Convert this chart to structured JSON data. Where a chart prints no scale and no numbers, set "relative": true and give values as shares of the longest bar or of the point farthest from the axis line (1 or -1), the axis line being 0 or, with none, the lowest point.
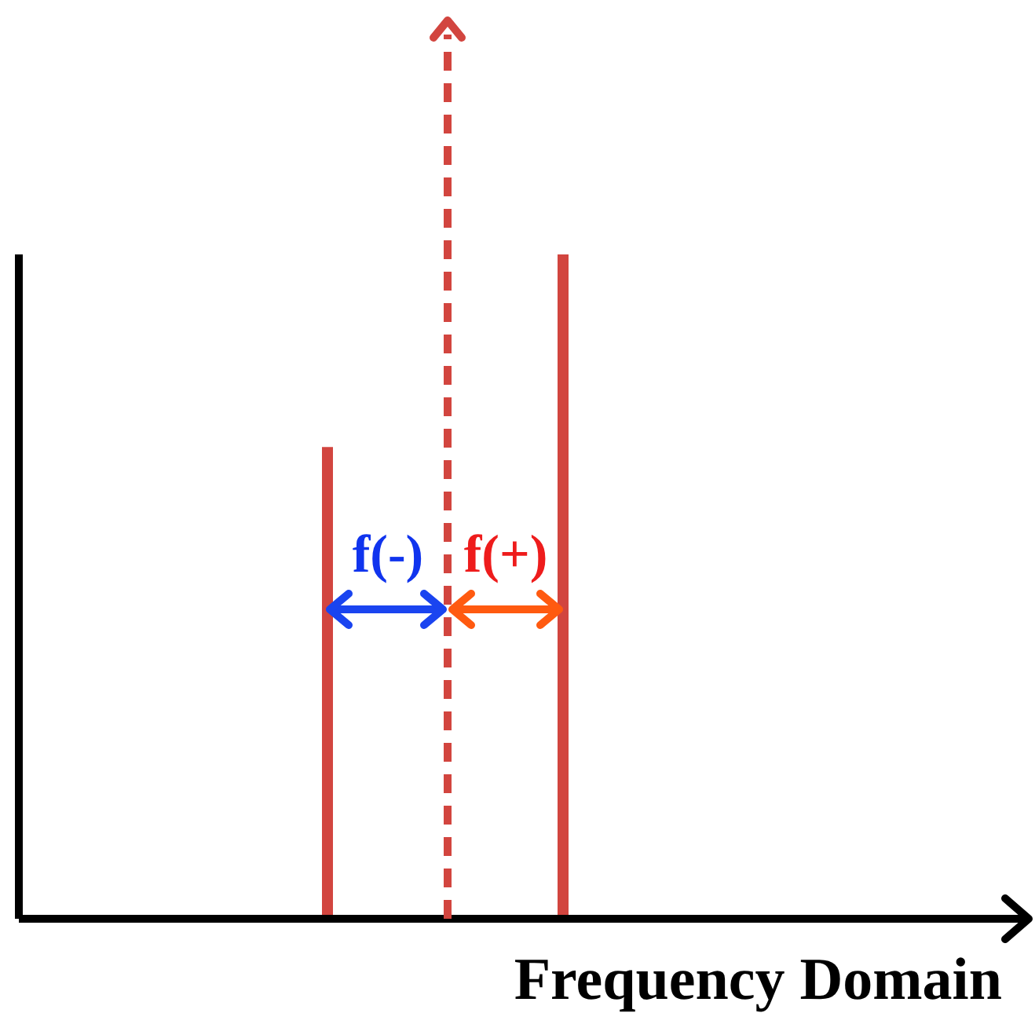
{
  "chart_data": {
    "type": "bar",
    "xlabel": "Frequency Domain",
    "relative": true,
    "categories": [
      null,
      null
    ],
    "values": [
      0.71,
      1
    ],
    "color": "#d2453f",
    "annotations": [
      "f(-)",
      "f(+)"
    ]
  }
}
